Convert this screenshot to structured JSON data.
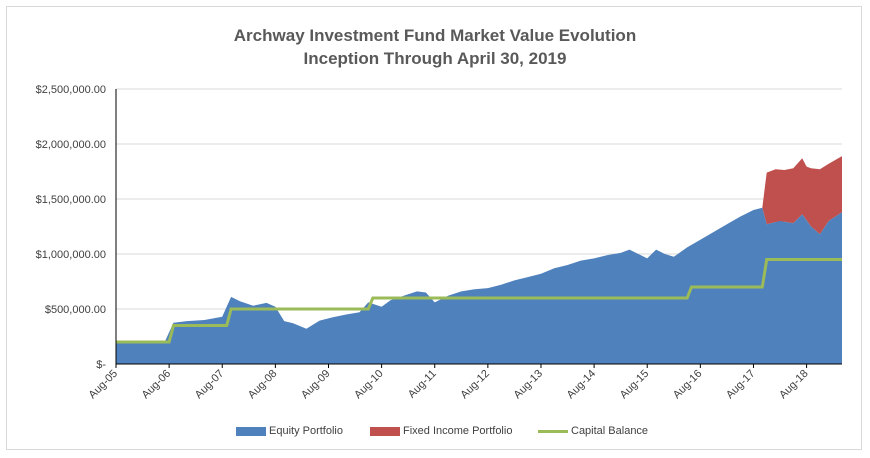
{
  "title_line1": "Archway Investment Fund Market Value Evolution",
  "title_line2": "Inception Through April 30, 2019",
  "colors": {
    "equity": "#4f81bd",
    "fixed_income": "#c0504d",
    "capital": "#9bbb59",
    "axis": "#000000",
    "grid": "#d9d9d9",
    "text": "#404040"
  },
  "legend": [
    {
      "label": "Equity Portfolio",
      "color": "#4f81bd",
      "kind": "area"
    },
    {
      "label": "Fixed Income Portfolio",
      "color": "#c0504d",
      "kind": "area"
    },
    {
      "label": "Capital Balance",
      "color": "#9bbb59",
      "kind": "line"
    }
  ],
  "chart_data": {
    "type": "area",
    "title": "Archway Investment Fund Market Value Evolution Inception Through April 30, 2019",
    "ylim": [
      0,
      2500000
    ],
    "yticks": [
      0,
      500000,
      1000000,
      1500000,
      2000000,
      2500000
    ],
    "ytick_labels": [
      "$-",
      "$500,000.00",
      "$1,000,000.00",
      "$1,500,000.00",
      "$2,000,000.00",
      "$2,500,000.00"
    ],
    "xtick_labels": [
      "Aug-05",
      "Aug-06",
      "Aug-07",
      "Aug-08",
      "Aug-09",
      "Aug-10",
      "Aug-11",
      "Aug-12",
      "Aug-13",
      "Aug-14",
      "Aug-15",
      "Aug-16",
      "Aug-17",
      "Aug-18"
    ],
    "grid": true,
    "legend_position": "bottom",
    "series": [
      {
        "name": "Equity Portfolio",
        "kind": "area",
        "points": [
          [
            "Aug-05",
            195000
          ],
          [
            "Feb-06",
            205000
          ],
          [
            "Jul-06",
            200000
          ],
          [
            "Sep-06",
            375000
          ],
          [
            "Dec-06",
            390000
          ],
          [
            "Apr-07",
            400000
          ],
          [
            "Aug-07",
            430000
          ],
          [
            "Oct-07",
            610000
          ],
          [
            "Dec-07",
            570000
          ],
          [
            "Mar-08",
            530000
          ],
          [
            "Jun-08",
            555000
          ],
          [
            "Aug-08",
            520000
          ],
          [
            "Oct-08",
            390000
          ],
          [
            "Dec-08",
            370000
          ],
          [
            "Mar-09",
            320000
          ],
          [
            "Jun-09",
            395000
          ],
          [
            "Sep-09",
            425000
          ],
          [
            "Dec-09",
            450000
          ],
          [
            "Mar-10",
            470000
          ],
          [
            "May-10",
            560000
          ],
          [
            "Aug-10",
            520000
          ],
          [
            "Oct-10",
            580000
          ],
          [
            "Jan-11",
            620000
          ],
          [
            "Apr-11",
            660000
          ],
          [
            "Jun-11",
            650000
          ],
          [
            "Aug-11",
            560000
          ],
          [
            "Nov-11",
            620000
          ],
          [
            "Feb-12",
            660000
          ],
          [
            "May-12",
            680000
          ],
          [
            "Aug-12",
            690000
          ],
          [
            "Nov-12",
            720000
          ],
          [
            "Feb-13",
            760000
          ],
          [
            "May-13",
            790000
          ],
          [
            "Aug-13",
            820000
          ],
          [
            "Nov-13",
            870000
          ],
          [
            "Feb-14",
            900000
          ],
          [
            "May-14",
            940000
          ],
          [
            "Aug-14",
            960000
          ],
          [
            "Nov-14",
            990000
          ],
          [
            "Feb-15",
            1010000
          ],
          [
            "Apr-15",
            1040000
          ],
          [
            "Jun-15",
            1000000
          ],
          [
            "Aug-15",
            960000
          ],
          [
            "Oct-15",
            1040000
          ],
          [
            "Dec-15",
            1000000
          ],
          [
            "Feb-16",
            975000
          ],
          [
            "May-16",
            1060000
          ],
          [
            "Aug-16",
            1130000
          ],
          [
            "Nov-16",
            1200000
          ],
          [
            "Feb-17",
            1270000
          ],
          [
            "May-17",
            1340000
          ],
          [
            "Aug-17",
            1400000
          ],
          [
            "Oct-17",
            1420000
          ],
          [
            "Nov-17",
            1270000
          ],
          [
            "Feb-18",
            1300000
          ],
          [
            "May-18",
            1280000
          ],
          [
            "Jul-18",
            1360000
          ],
          [
            "Sep-18",
            1250000
          ],
          [
            "Nov-18",
            1180000
          ],
          [
            "Jan-19",
            1300000
          ],
          [
            "Apr-19",
            1380000
          ]
        ]
      },
      {
        "name": "Fixed Income Portfolio",
        "kind": "area",
        "points": [
          [
            "Oct-17",
            0
          ],
          [
            "Nov-17",
            470000
          ],
          [
            "Jan-18",
            480000
          ],
          [
            "Mar-18",
            470000
          ],
          [
            "May-18",
            500000
          ],
          [
            "Jul-18",
            510000
          ],
          [
            "Aug-18",
            490000
          ],
          [
            "Sep-18",
            530000
          ],
          [
            "Nov-18",
            590000
          ],
          [
            "Jan-19",
            520000
          ],
          [
            "Apr-19",
            510000
          ]
        ]
      },
      {
        "name": "Capital Balance",
        "kind": "line",
        "points": [
          [
            "Aug-05",
            200000
          ],
          [
            "Aug-06",
            200000
          ],
          [
            "Sep-06",
            350000
          ],
          [
            "Sep-07",
            350000
          ],
          [
            "Oct-07",
            500000
          ],
          [
            "May-10",
            500000
          ],
          [
            "Jun-10",
            600000
          ],
          [
            "May-16",
            600000
          ],
          [
            "Jun-16",
            700000
          ],
          [
            "Oct-17",
            700000
          ],
          [
            "Nov-17",
            950000
          ],
          [
            "Apr-19",
            950000
          ]
        ]
      }
    ]
  }
}
